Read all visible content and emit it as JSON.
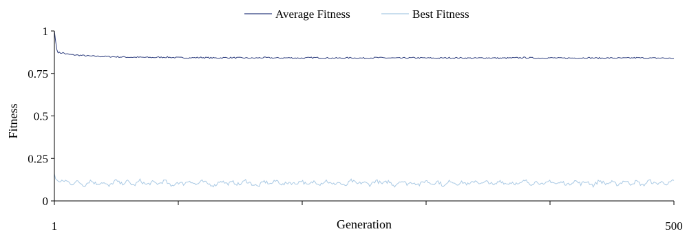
{
  "chart_data": {
    "type": "line",
    "title": "",
    "xlabel": "Generation",
    "ylabel": "Fitness",
    "xlim": [
      1,
      500
    ],
    "ylim": [
      0,
      1
    ],
    "x_tick_labels": [
      "1",
      "500"
    ],
    "y_ticks": [
      0,
      0.25,
      0.5,
      0.75,
      1
    ],
    "y_tick_labels": [
      "0",
      "0.25",
      "0.5",
      "0.75",
      "1"
    ],
    "grid": false,
    "legend_position": "top",
    "series": [
      {
        "name": "Average Fitness",
        "color": "#2f3f7f",
        "x": [
          1,
          2,
          3,
          4,
          6,
          8,
          10,
          15,
          20,
          30,
          40,
          50,
          60,
          70,
          80,
          90,
          100,
          110,
          120,
          130,
          140,
          150,
          160,
          170,
          180,
          190,
          200,
          210,
          220,
          230,
          240,
          250,
          260,
          270,
          280,
          290,
          300,
          310,
          320,
          330,
          340,
          350,
          360,
          370,
          380,
          390,
          400,
          410,
          420,
          430,
          440,
          450,
          460,
          470,
          480,
          490,
          500
        ],
        "values": [
          1.0,
          0.94,
          0.89,
          0.875,
          0.87,
          0.872,
          0.865,
          0.86,
          0.858,
          0.852,
          0.85,
          0.848,
          0.846,
          0.845,
          0.844,
          0.846,
          0.843,
          0.842,
          0.844,
          0.841,
          0.843,
          0.842,
          0.84,
          0.843,
          0.841,
          0.842,
          0.84,
          0.843,
          0.841,
          0.84,
          0.842,
          0.84,
          0.843,
          0.841,
          0.84,
          0.842,
          0.841,
          0.84,
          0.842,
          0.841,
          0.84,
          0.842,
          0.84,
          0.841,
          0.843,
          0.84,
          0.842,
          0.84,
          0.841,
          0.842,
          0.84,
          0.841,
          0.84,
          0.842,
          0.84,
          0.841,
          0.838
        ]
      },
      {
        "name": "Best Fitness",
        "color": "#a9c9e4",
        "x": [
          1,
          2,
          5,
          10,
          15,
          20,
          25,
          30,
          35,
          40,
          45,
          50,
          55,
          60,
          65,
          70,
          75,
          80,
          85,
          90,
          95,
          100,
          105,
          110,
          115,
          120,
          125,
          130,
          135,
          140,
          145,
          150,
          155,
          160,
          165,
          170,
          175,
          180,
          185,
          190,
          195,
          200,
          205,
          210,
          215,
          220,
          225,
          230,
          235,
          240,
          245,
          250,
          255,
          260,
          265,
          270,
          275,
          280,
          285,
          290,
          295,
          300,
          305,
          310,
          315,
          320,
          325,
          330,
          335,
          340,
          345,
          350,
          355,
          360,
          365,
          370,
          375,
          380,
          385,
          390,
          395,
          400,
          405,
          410,
          415,
          420,
          425,
          430,
          435,
          440,
          445,
          450,
          455,
          460,
          465,
          470,
          475,
          480,
          485,
          490,
          495,
          500
        ],
        "values": [
          0.16,
          0.13,
          0.11,
          0.12,
          0.1,
          0.115,
          0.09,
          0.12,
          0.1,
          0.11,
          0.085,
          0.12,
          0.1,
          0.115,
          0.09,
          0.12,
          0.095,
          0.11,
          0.1,
          0.12,
          0.085,
          0.11,
          0.1,
          0.12,
          0.095,
          0.115,
          0.1,
          0.09,
          0.12,
          0.1,
          0.11,
          0.095,
          0.12,
          0.1,
          0.085,
          0.115,
          0.1,
          0.12,
          0.095,
          0.11,
          0.1,
          0.12,
          0.09,
          0.115,
          0.1,
          0.12,
          0.095,
          0.11,
          0.085,
          0.12,
          0.1,
          0.11,
          0.095,
          0.12,
          0.1,
          0.115,
          0.09,
          0.12,
          0.1,
          0.11,
          0.095,
          0.12,
          0.1,
          0.115,
          0.085,
          0.12,
          0.1,
          0.11,
          0.095,
          0.12,
          0.1,
          0.115,
          0.09,
          0.12,
          0.1,
          0.11,
          0.095,
          0.12,
          0.1,
          0.115,
          0.09,
          0.12,
          0.1,
          0.11,
          0.095,
          0.12,
          0.1,
          0.115,
          0.09,
          0.12,
          0.1,
          0.11,
          0.095,
          0.12,
          0.1,
          0.115,
          0.09,
          0.12,
          0.1,
          0.11,
          0.1,
          0.12
        ]
      }
    ]
  }
}
